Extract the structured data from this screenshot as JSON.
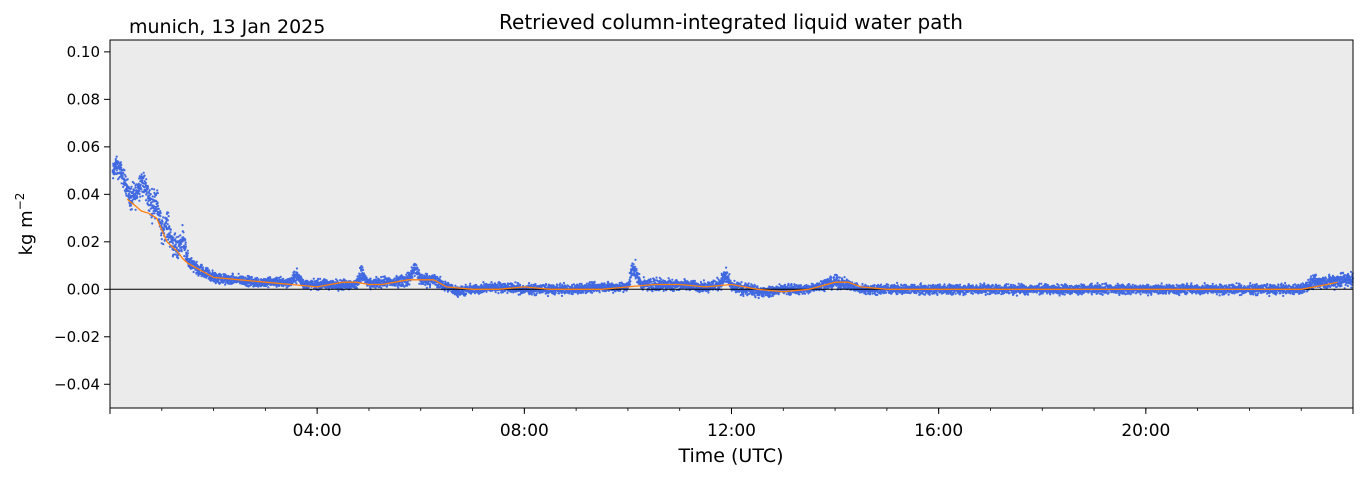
{
  "chart_data": {
    "type": "scatter",
    "title": "Retrieved column-integrated liquid water path",
    "subtitle": "munich, 13 Jan 2025",
    "xlabel": "Time (UTC)",
    "ylabel_base": "kg m",
    "ylabel_exp": "−2",
    "x_unit": "hours (UTC)",
    "xlim": [
      0,
      24
    ],
    "ylim": [
      -0.05,
      0.105
    ],
    "x_ticks": [
      {
        "value": 4,
        "label": "04:00"
      },
      {
        "value": 8,
        "label": "08:00"
      },
      {
        "value": 12,
        "label": "12:00"
      },
      {
        "value": 16,
        "label": "16:00"
      },
      {
        "value": 20,
        "label": "20:00"
      }
    ],
    "y_ticks": [
      {
        "value": 0.1,
        "label": "0.10"
      },
      {
        "value": 0.08,
        "label": "0.08"
      },
      {
        "value": 0.06,
        "label": "0.06"
      },
      {
        "value": 0.04,
        "label": "0.04"
      },
      {
        "value": 0.02,
        "label": "0.02"
      },
      {
        "value": 0.0,
        "label": "0.00"
      },
      {
        "value": -0.02,
        "label": "−0.02"
      },
      {
        "value": -0.04,
        "label": "−0.04"
      }
    ],
    "reference_line_y": 0,
    "background_color": "#ebebeb",
    "colors": {
      "raw": "#4169e1",
      "smoothed": "#ff7f0e"
    },
    "series": [
      {
        "kind": "raw",
        "style": "scatter",
        "x": [
          0.05,
          0.1,
          0.2,
          0.3,
          0.4,
          0.5,
          0.6,
          0.7,
          0.8,
          0.9,
          1.0,
          1.1,
          1.2,
          1.3,
          1.4,
          1.5,
          1.6,
          1.7,
          1.8,
          1.9,
          2.0,
          2.25,
          2.5,
          2.75,
          3.0,
          3.25,
          3.5,
          3.6,
          3.75,
          4.0,
          4.25,
          4.5,
          4.75,
          4.85,
          5.0,
          5.25,
          5.5,
          5.75,
          5.9,
          6.0,
          6.25,
          6.5,
          6.75,
          7.0,
          7.5,
          8.0,
          8.5,
          9.0,
          9.5,
          10.0,
          10.1,
          10.25,
          10.5,
          10.75,
          11.0,
          11.5,
          11.75,
          11.9,
          12.0,
          12.25,
          12.5,
          12.75,
          13.0,
          13.5,
          13.75,
          14.0,
          14.25,
          14.5,
          15.0,
          16.0,
          17.0,
          18.0,
          19.0,
          20.0,
          21.0,
          22.0,
          23.0,
          23.25,
          23.5,
          23.75,
          24.0
        ],
        "y": [
          0.048,
          0.052,
          0.05,
          0.045,
          0.038,
          0.04,
          0.046,
          0.042,
          0.035,
          0.038,
          0.024,
          0.028,
          0.02,
          0.016,
          0.022,
          0.012,
          0.01,
          0.008,
          0.007,
          0.006,
          0.005,
          0.004,
          0.004,
          0.003,
          0.003,
          0.003,
          0.003,
          0.006,
          0.002,
          0.002,
          0.002,
          0.002,
          0.002,
          0.007,
          0.002,
          0.003,
          0.003,
          0.004,
          0.009,
          0.004,
          0.004,
          0.001,
          -0.001,
          0.0,
          0.001,
          0.0,
          0.0,
          0.0,
          0.001,
          0.001,
          0.01,
          0.002,
          0.002,
          0.002,
          0.002,
          0.001,
          0.002,
          0.006,
          0.001,
          0.0,
          -0.001,
          -0.001,
          0.0,
          0.0,
          0.002,
          0.003,
          0.002,
          0.0,
          0.0,
          0.0,
          0.0,
          0.0,
          0.0,
          0.0,
          0.0,
          0.0,
          0.0,
          0.003,
          0.003,
          0.004,
          0.004
        ],
        "spread": [
          0.006,
          0.006,
          0.006,
          0.006,
          0.008,
          0.008,
          0.008,
          0.008,
          0.009,
          0.009,
          0.008,
          0.008,
          0.008,
          0.007,
          0.007,
          0.005,
          0.004,
          0.004,
          0.004,
          0.004,
          0.004,
          0.003,
          0.003,
          0.003,
          0.003,
          0.003,
          0.003,
          0.004,
          0.003,
          0.003,
          0.003,
          0.003,
          0.003,
          0.005,
          0.003,
          0.003,
          0.003,
          0.004,
          0.005,
          0.004,
          0.004,
          0.003,
          0.003,
          0.003,
          0.003,
          0.003,
          0.003,
          0.003,
          0.003,
          0.003,
          0.006,
          0.003,
          0.004,
          0.004,
          0.003,
          0.003,
          0.004,
          0.005,
          0.003,
          0.004,
          0.003,
          0.003,
          0.003,
          0.003,
          0.003,
          0.004,
          0.003,
          0.003,
          0.003,
          0.003,
          0.003,
          0.003,
          0.003,
          0.003,
          0.003,
          0.003,
          0.003,
          0.004,
          0.004,
          0.005,
          0.005
        ]
      },
      {
        "kind": "smoothed",
        "style": "line",
        "x": [
          0.33,
          0.5,
          0.6,
          0.75,
          0.9,
          1.0,
          1.1,
          1.2,
          1.3,
          1.4,
          1.5,
          1.75,
          2.0,
          2.5,
          3.0,
          3.5,
          4.0,
          4.25,
          4.5,
          4.75,
          5.0,
          5.25,
          5.5,
          5.75,
          6.0,
          6.25,
          6.5,
          7.0,
          7.5,
          8.0,
          8.5,
          9.0,
          9.5,
          10.0,
          10.5,
          11.0,
          11.5,
          12.0,
          12.25,
          12.5,
          13.0,
          13.5,
          14.0,
          14.25,
          14.5,
          15.0,
          16.0,
          17.0,
          18.0,
          19.0,
          20.0,
          21.0,
          22.0,
          23.0,
          23.5,
          23.7
        ],
        "y": [
          0.038,
          0.035,
          0.033,
          0.032,
          0.03,
          0.025,
          0.02,
          0.018,
          0.016,
          0.013,
          0.011,
          0.008,
          0.005,
          0.004,
          0.003,
          0.002,
          0.001,
          0.002,
          0.003,
          0.003,
          0.002,
          0.002,
          0.003,
          0.004,
          0.004,
          0.004,
          0.001,
          0.0,
          0.0,
          0.001,
          0.0,
          0.0,
          0.0,
          0.001,
          0.002,
          0.002,
          0.001,
          0.002,
          0.001,
          0.0,
          -0.001,
          0.0,
          0.003,
          0.003,
          0.001,
          0.0,
          0.0,
          0.0,
          0.0,
          0.0,
          0.0,
          0.0,
          0.0,
          0.0,
          0.002,
          0.003
        ]
      }
    ]
  }
}
